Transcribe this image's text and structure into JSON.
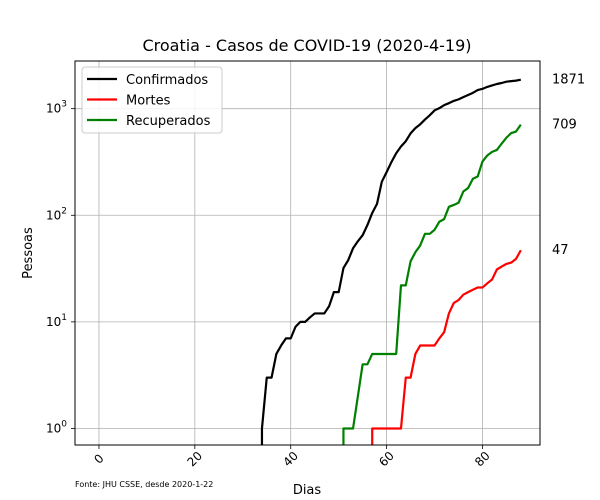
{
  "chart_data": {
    "type": "line",
    "title": "Croatia - Casos de COVID-19 (2020-4-19)",
    "xlabel": "Dias",
    "ylabel": "Pessoas",
    "yscale": "log",
    "xlim": [
      -5,
      92
    ],
    "ylim": [
      0.7,
      2800
    ],
    "x_ticks": [
      0,
      20,
      40,
      60,
      80
    ],
    "y_ticks": [
      {
        "value": 1,
        "label": "10^0"
      },
      {
        "value": 10,
        "label": "10^1"
      },
      {
        "value": 100,
        "label": "10^2"
      },
      {
        "value": 1000,
        "label": "10^3"
      }
    ],
    "grid": true,
    "legend_position": "top-left",
    "source_note": "Fonte: JHU CSSE, desde 2020-1-22",
    "series": [
      {
        "name": "Confirmados",
        "color": "#000000",
        "end_label": "1871",
        "points": [
          [
            34,
            0.5
          ],
          [
            34,
            1
          ],
          [
            35,
            3
          ],
          [
            36,
            3
          ],
          [
            37,
            5
          ],
          [
            38,
            6
          ],
          [
            39,
            7
          ],
          [
            40,
            7
          ],
          [
            41,
            9
          ],
          [
            42,
            10
          ],
          [
            43,
            10
          ],
          [
            44,
            11
          ],
          [
            45,
            12
          ],
          [
            46,
            12
          ],
          [
            47,
            12
          ],
          [
            48,
            14
          ],
          [
            49,
            19
          ],
          [
            50,
            19
          ],
          [
            51,
            32
          ],
          [
            52,
            38
          ],
          [
            53,
            49
          ],
          [
            54,
            57
          ],
          [
            55,
            65
          ],
          [
            56,
            81
          ],
          [
            57,
            105
          ],
          [
            58,
            128
          ],
          [
            59,
            206
          ],
          [
            60,
            254
          ],
          [
            61,
            315
          ],
          [
            62,
            382
          ],
          [
            63,
            442
          ],
          [
            64,
            495
          ],
          [
            65,
            586
          ],
          [
            66,
            657
          ],
          [
            67,
            713
          ],
          [
            68,
            790
          ],
          [
            69,
            867
          ],
          [
            70,
            963
          ],
          [
            71,
            1011
          ],
          [
            72,
            1079
          ],
          [
            73,
            1126
          ],
          [
            74,
            1182
          ],
          [
            75,
            1222
          ],
          [
            76,
            1282
          ],
          [
            77,
            1343
          ],
          [
            78,
            1407
          ],
          [
            79,
            1495
          ],
          [
            80,
            1534
          ],
          [
            81,
            1600
          ],
          [
            82,
            1650
          ],
          [
            83,
            1704
          ],
          [
            84,
            1741
          ],
          [
            85,
            1791
          ],
          [
            86,
            1814
          ],
          [
            87,
            1832
          ],
          [
            88,
            1871
          ]
        ]
      },
      {
        "name": "Mortes",
        "color": "#ff0000",
        "end_label": "47",
        "points": [
          [
            57,
            0.5
          ],
          [
            57,
            1
          ],
          [
            58,
            1
          ],
          [
            59,
            1
          ],
          [
            60,
            1
          ],
          [
            61,
            1
          ],
          [
            62,
            1
          ],
          [
            63,
            1
          ],
          [
            64,
            3
          ],
          [
            65,
            3
          ],
          [
            66,
            5
          ],
          [
            67,
            6
          ],
          [
            68,
            6
          ],
          [
            69,
            6
          ],
          [
            70,
            6
          ],
          [
            71,
            7
          ],
          [
            72,
            8
          ],
          [
            73,
            12
          ],
          [
            74,
            15
          ],
          [
            75,
            16
          ],
          [
            76,
            18
          ],
          [
            77,
            19
          ],
          [
            78,
            20
          ],
          [
            79,
            21
          ],
          [
            80,
            21
          ],
          [
            81,
            23
          ],
          [
            82,
            25
          ],
          [
            83,
            31
          ],
          [
            84,
            33
          ],
          [
            85,
            35
          ],
          [
            86,
            36
          ],
          [
            87,
            39
          ],
          [
            88,
            47
          ]
        ]
      },
      {
        "name": "Recuperados",
        "color": "#008000",
        "end_label": "709",
        "points": [
          [
            51,
            0.5
          ],
          [
            51,
            1
          ],
          [
            52,
            1
          ],
          [
            53,
            1
          ],
          [
            54,
            2
          ],
          [
            55,
            4
          ],
          [
            56,
            4
          ],
          [
            57,
            5
          ],
          [
            58,
            5
          ],
          [
            59,
            5
          ],
          [
            60,
            5
          ],
          [
            61,
            5
          ],
          [
            62,
            5
          ],
          [
            63,
            22
          ],
          [
            64,
            22
          ],
          [
            65,
            37
          ],
          [
            66,
            45
          ],
          [
            67,
            52
          ],
          [
            68,
            67
          ],
          [
            69,
            67
          ],
          [
            70,
            73
          ],
          [
            71,
            87
          ],
          [
            72,
            92
          ],
          [
            73,
            120
          ],
          [
            74,
            125
          ],
          [
            75,
            131
          ],
          [
            76,
            167
          ],
          [
            77,
            180
          ],
          [
            78,
            220
          ],
          [
            79,
            231
          ],
          [
            80,
            319
          ],
          [
            81,
            364
          ],
          [
            82,
            393
          ],
          [
            83,
            410
          ],
          [
            84,
            470
          ],
          [
            85,
            535
          ],
          [
            86,
            590
          ],
          [
            87,
            610
          ],
          [
            88,
            709
          ]
        ]
      }
    ]
  }
}
